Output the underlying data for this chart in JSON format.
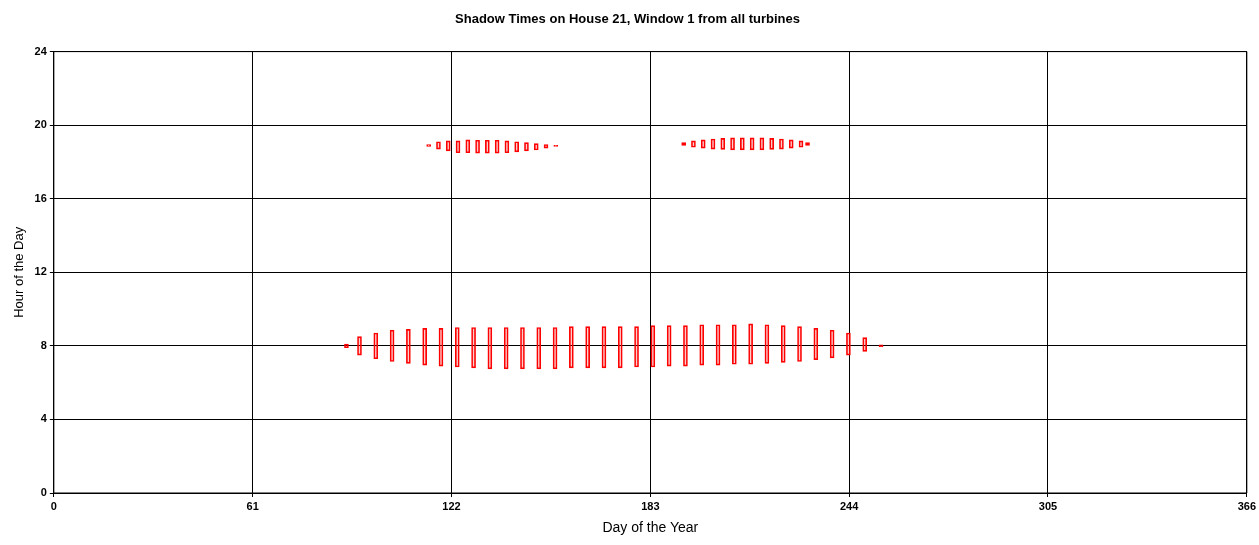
{
  "chart_data": {
    "type": "bar",
    "title": "Shadow Times on House 21, Window 1 from all turbines",
    "xlabel": "Day of the Year",
    "ylabel": "Hour of the Day",
    "xlim": [
      0,
      366
    ],
    "xticks": [
      0,
      61,
      122,
      183,
      244,
      305,
      366
    ],
    "ylim": [
      0,
      24
    ],
    "yticks": [
      0,
      4,
      8,
      12,
      16,
      20,
      24
    ],
    "grid": true,
    "legend": false,
    "series": [
      {
        "color": "#ff0000",
        "x": [
          91,
          95,
          100,
          105,
          110,
          115,
          120,
          125,
          130,
          135,
          140,
          145,
          150,
          155,
          160,
          165,
          170,
          175,
          180,
          185,
          190,
          195,
          200,
          205,
          210,
          215,
          220,
          225,
          230,
          235,
          240,
          245,
          250,
          255
        ],
        "base": [
          7.9,
          7.5,
          7.3,
          7.15,
          7.05,
          6.95,
          6.9,
          6.85,
          6.8,
          6.75,
          6.75,
          6.75,
          6.75,
          6.75,
          6.8,
          6.8,
          6.8,
          6.8,
          6.85,
          6.85,
          6.9,
          6.9,
          6.95,
          6.95,
          7.0,
          7.0,
          7.05,
          7.1,
          7.15,
          7.25,
          7.35,
          7.5,
          7.7,
          7.95
        ],
        "values": [
          0.2,
          1.0,
          1.4,
          1.7,
          1.85,
          2.0,
          2.05,
          2.15,
          2.2,
          2.25,
          2.25,
          2.25,
          2.25,
          2.25,
          2.25,
          2.25,
          2.25,
          2.25,
          2.2,
          2.25,
          2.2,
          2.2,
          2.2,
          2.2,
          2.15,
          2.2,
          2.1,
          2.0,
          1.9,
          1.7,
          1.5,
          1.2,
          0.75,
          0.1
        ]
      },
      {
        "color": "#ff0000",
        "x": [
          115,
          118,
          121,
          124,
          127,
          130,
          133,
          136,
          139,
          142,
          145,
          148,
          151,
          154
        ],
        "base": [
          18.85,
          18.7,
          18.6,
          18.5,
          18.5,
          18.48,
          18.48,
          18.48,
          18.5,
          18.55,
          18.6,
          18.65,
          18.75,
          18.85
        ],
        "values": [
          0.1,
          0.4,
          0.55,
          0.65,
          0.7,
          0.7,
          0.7,
          0.7,
          0.65,
          0.55,
          0.45,
          0.35,
          0.2,
          0.05
        ]
      },
      {
        "color": "#ff0000",
        "x": [
          192,
          195,
          198,
          201,
          204,
          207,
          210,
          213,
          216,
          219,
          222,
          225,
          228,
          230
        ],
        "base": [
          18.9,
          18.8,
          18.75,
          18.7,
          18.68,
          18.66,
          18.66,
          18.66,
          18.66,
          18.68,
          18.7,
          18.75,
          18.8,
          18.9
        ],
        "values": [
          0.15,
          0.35,
          0.45,
          0.55,
          0.6,
          0.65,
          0.65,
          0.65,
          0.65,
          0.6,
          0.55,
          0.45,
          0.35,
          0.15
        ]
      }
    ]
  }
}
